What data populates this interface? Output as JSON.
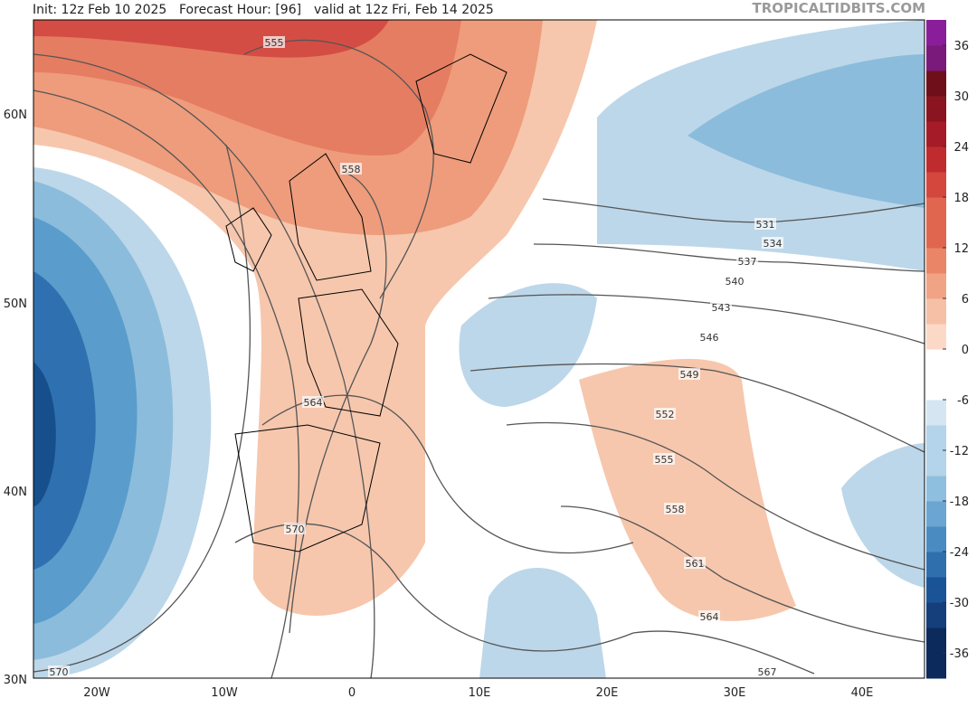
{
  "header": {
    "init": "Init: 12z Feb 10 2025",
    "forecast_hour": "Forecast Hour: [96]",
    "valid": "valid at 12z Fri, Feb 14 2025",
    "watermark": "TROPICALTIDBITS.COM"
  },
  "map": {
    "lat_labels": [
      "60N",
      "50N",
      "40N",
      "30N"
    ],
    "lon_labels": [
      "20W",
      "10W",
      "0",
      "10E",
      "20E",
      "30E",
      "40E"
    ],
    "contour_labels": [
      555,
      558,
      564,
      570,
      570,
      531,
      534,
      537,
      540,
      543,
      546,
      549,
      552,
      555,
      558,
      561,
      564,
      567
    ]
  },
  "colorbar": {
    "range": [
      -39,
      39
    ],
    "ticks": [
      36,
      30,
      24,
      18,
      12,
      6,
      0,
      -6,
      -12,
      -18,
      -24,
      -30,
      -36
    ]
  }
}
